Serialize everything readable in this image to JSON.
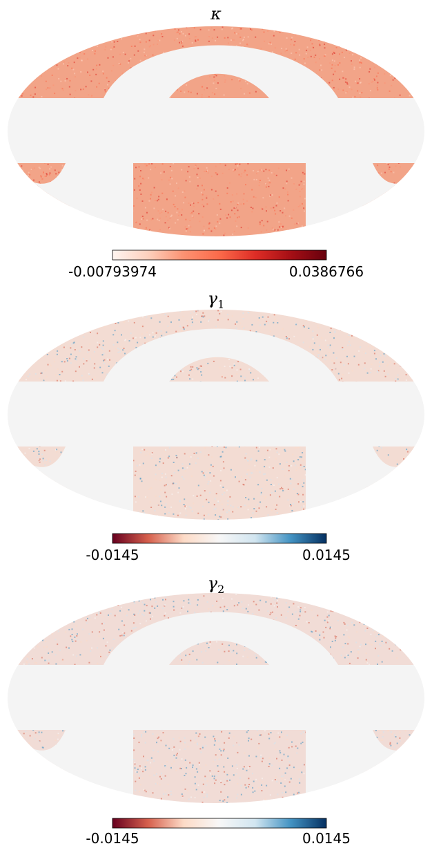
{
  "chart_data": [
    {
      "type": "heatmap",
      "projection": "mollweide",
      "title": "κ",
      "colormap": "Reds",
      "colorbar": {
        "min_label": "-0.00793974",
        "max_label": "0.0386766",
        "vmin": -0.00793974,
        "vmax": 0.0386766
      },
      "mask_color": "#f4f4f4",
      "colormap_stops": [
        "#fff5f0",
        "#fdd0bd",
        "#fc9272",
        "#fb6a4a",
        "#de2d26",
        "#a50f15",
        "#67000d"
      ],
      "field_tint": "#f2a488"
    },
    {
      "type": "heatmap",
      "projection": "mollweide",
      "title": "γ",
      "title_subscript": "1",
      "colormap": "RdBu",
      "colorbar": {
        "min_label": "-0.0145",
        "max_label": "0.0145",
        "vmin": -0.0145,
        "vmax": 0.0145
      },
      "mask_color": "#f4f4f4",
      "colormap_stops": [
        "#67001f",
        "#d6604d",
        "#fddbc7",
        "#f7f7f7",
        "#d1e5f0",
        "#4393c3",
        "#053061"
      ],
      "field_tint": "#f3dcd3"
    },
    {
      "type": "heatmap",
      "projection": "mollweide",
      "title": "γ",
      "title_subscript": "2",
      "colormap": "RdBu",
      "colorbar": {
        "min_label": "-0.0145",
        "max_label": "0.0145",
        "vmin": -0.0145,
        "vmax": 0.0145
      },
      "mask_color": "#f4f4f4",
      "colormap_stops": [
        "#67001f",
        "#d6604d",
        "#fddbc7",
        "#f7f7f7",
        "#d1e5f0",
        "#4393c3",
        "#053061"
      ],
      "field_tint": "#f1dcd6"
    }
  ]
}
